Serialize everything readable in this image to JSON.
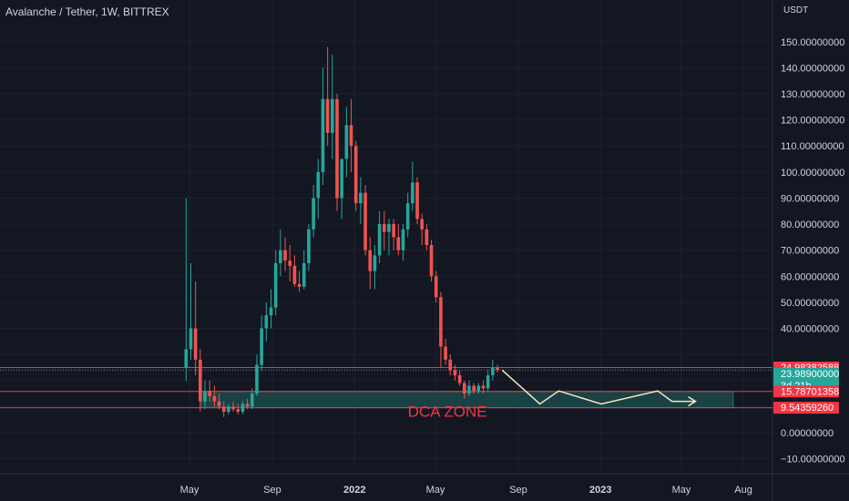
{
  "header": {
    "title": "Avalanche / Tether, 1W, BITTREX",
    "currency": "USDT"
  },
  "colors": {
    "background": "#131722",
    "up": "#26a69a",
    "down": "#ef5350",
    "hline": "#f23645",
    "zone_fill": "#1e5050",
    "projection": "#f3e9c0",
    "annotation": "#f23645",
    "text": "#d1d4dc",
    "grid": "#1c2030"
  },
  "chart_data": {
    "type": "candlestick",
    "y_ticks": [
      -10,
      0,
      10,
      20,
      30,
      40,
      50,
      60,
      70,
      80,
      90,
      100,
      110,
      120,
      130,
      140,
      150
    ],
    "y_tick_labels": [
      "−10.00000000",
      "0.00000000",
      "",
      "",
      "",
      "40.00000000",
      "50.00000000",
      "60.00000000",
      "70.00000000",
      "80.00000000",
      "90.00000000",
      "100.00000000",
      "110.00000000",
      "120.00000000",
      "130.00000000",
      "140.00000000",
      "150.00000000"
    ],
    "ylim": [
      -14,
      166
    ],
    "x_ticks": [
      {
        "label": "May",
        "date": "2021-05-01"
      },
      {
        "label": "Sep",
        "date": "2021-09-01"
      },
      {
        "label": "2022",
        "date": "2022-01-01"
      },
      {
        "label": "May",
        "date": "2022-05-01"
      },
      {
        "label": "Sep",
        "date": "2022-09-01"
      },
      {
        "label": "2023",
        "date": "2023-01-01"
      },
      {
        "label": "May",
        "date": "2023-05-01"
      },
      {
        "label": "Aug",
        "date": "2023-08-01"
      }
    ],
    "candles": [
      {
        "date": "2021-04-26",
        "o": 25,
        "h": 90,
        "l": 20,
        "c": 32
      },
      {
        "date": "2021-05-03",
        "o": 32,
        "h": 65,
        "l": 28,
        "c": 40
      },
      {
        "date": "2021-05-10",
        "o": 40,
        "h": 58,
        "l": 22,
        "c": 28
      },
      {
        "date": "2021-05-17",
        "o": 28,
        "h": 32,
        "l": 8,
        "c": 12
      },
      {
        "date": "2021-05-24",
        "o": 12,
        "h": 20,
        "l": 9,
        "c": 16
      },
      {
        "date": "2021-05-31",
        "o": 16,
        "h": 20,
        "l": 12,
        "c": 14
      },
      {
        "date": "2021-06-07",
        "o": 14,
        "h": 18,
        "l": 10,
        "c": 12
      },
      {
        "date": "2021-06-14",
        "o": 12,
        "h": 15,
        "l": 9,
        "c": 10
      },
      {
        "date": "2021-06-21",
        "o": 10,
        "h": 12,
        "l": 6,
        "c": 8
      },
      {
        "date": "2021-06-28",
        "o": 8,
        "h": 11,
        "l": 7,
        "c": 10
      },
      {
        "date": "2021-07-05",
        "o": 10,
        "h": 12,
        "l": 8,
        "c": 9
      },
      {
        "date": "2021-07-12",
        "o": 9,
        "h": 11,
        "l": 7,
        "c": 8
      },
      {
        "date": "2021-07-19",
        "o": 8,
        "h": 12,
        "l": 7,
        "c": 11
      },
      {
        "date": "2021-07-26",
        "o": 11,
        "h": 13,
        "l": 9,
        "c": 10
      },
      {
        "date": "2021-08-02",
        "o": 10,
        "h": 17,
        "l": 9,
        "c": 15
      },
      {
        "date": "2021-08-09",
        "o": 15,
        "h": 30,
        "l": 14,
        "c": 26
      },
      {
        "date": "2021-08-16",
        "o": 26,
        "h": 45,
        "l": 24,
        "c": 40
      },
      {
        "date": "2021-08-23",
        "o": 40,
        "h": 50,
        "l": 35,
        "c": 45
      },
      {
        "date": "2021-08-30",
        "o": 45,
        "h": 55,
        "l": 40,
        "c": 48
      },
      {
        "date": "2021-09-06",
        "o": 48,
        "h": 70,
        "l": 45,
        "c": 65
      },
      {
        "date": "2021-09-13",
        "o": 65,
        "h": 78,
        "l": 60,
        "c": 70
      },
      {
        "date": "2021-09-20",
        "o": 70,
        "h": 75,
        "l": 62,
        "c": 66
      },
      {
        "date": "2021-09-27",
        "o": 66,
        "h": 72,
        "l": 58,
        "c": 64
      },
      {
        "date": "2021-10-04",
        "o": 64,
        "h": 68,
        "l": 56,
        "c": 57
      },
      {
        "date": "2021-10-11",
        "o": 57,
        "h": 62,
        "l": 54,
        "c": 56
      },
      {
        "date": "2021-10-18",
        "o": 56,
        "h": 70,
        "l": 55,
        "c": 65
      },
      {
        "date": "2021-10-25",
        "o": 65,
        "h": 80,
        "l": 62,
        "c": 78
      },
      {
        "date": "2021-11-01",
        "o": 78,
        "h": 95,
        "l": 75,
        "c": 90
      },
      {
        "date": "2021-11-08",
        "o": 90,
        "h": 105,
        "l": 82,
        "c": 100
      },
      {
        "date": "2021-11-15",
        "o": 100,
        "h": 140,
        "l": 95,
        "c": 128
      },
      {
        "date": "2021-11-22",
        "o": 128,
        "h": 148,
        "l": 110,
        "c": 115
      },
      {
        "date": "2021-11-29",
        "o": 115,
        "h": 145,
        "l": 105,
        "c": 128
      },
      {
        "date": "2021-12-06",
        "o": 128,
        "h": 130,
        "l": 85,
        "c": 90
      },
      {
        "date": "2021-12-13",
        "o": 90,
        "h": 105,
        "l": 82,
        "c": 105
      },
      {
        "date": "2021-12-20",
        "o": 105,
        "h": 125,
        "l": 98,
        "c": 118
      },
      {
        "date": "2021-12-27",
        "o": 118,
        "h": 128,
        "l": 100,
        "c": 110
      },
      {
        "date": "2022-01-03",
        "o": 110,
        "h": 112,
        "l": 85,
        "c": 88
      },
      {
        "date": "2022-01-10",
        "o": 88,
        "h": 98,
        "l": 80,
        "c": 92
      },
      {
        "date": "2022-01-17",
        "o": 92,
        "h": 95,
        "l": 68,
        "c": 70
      },
      {
        "date": "2022-01-24",
        "o": 70,
        "h": 75,
        "l": 55,
        "c": 62
      },
      {
        "date": "2022-01-31",
        "o": 62,
        "h": 72,
        "l": 55,
        "c": 68
      },
      {
        "date": "2022-02-07",
        "o": 68,
        "h": 85,
        "l": 65,
        "c": 80
      },
      {
        "date": "2022-02-14",
        "o": 80,
        "h": 85,
        "l": 70,
        "c": 77
      },
      {
        "date": "2022-02-21",
        "o": 77,
        "h": 82,
        "l": 68,
        "c": 80
      },
      {
        "date": "2022-02-28",
        "o": 80,
        "h": 82,
        "l": 70,
        "c": 75
      },
      {
        "date": "2022-03-07",
        "o": 75,
        "h": 80,
        "l": 68,
        "c": 70
      },
      {
        "date": "2022-03-14",
        "o": 70,
        "h": 80,
        "l": 66,
        "c": 78
      },
      {
        "date": "2022-03-21",
        "o": 78,
        "h": 92,
        "l": 75,
        "c": 88
      },
      {
        "date": "2022-03-28",
        "o": 88,
        "h": 104,
        "l": 85,
        "c": 96
      },
      {
        "date": "2022-04-04",
        "o": 96,
        "h": 98,
        "l": 80,
        "c": 82
      },
      {
        "date": "2022-04-11",
        "o": 82,
        "h": 84,
        "l": 72,
        "c": 78
      },
      {
        "date": "2022-04-18",
        "o": 78,
        "h": 80,
        "l": 70,
        "c": 72
      },
      {
        "date": "2022-04-25",
        "o": 72,
        "h": 74,
        "l": 58,
        "c": 60
      },
      {
        "date": "2022-05-02",
        "o": 60,
        "h": 62,
        "l": 50,
        "c": 52
      },
      {
        "date": "2022-05-09",
        "o": 52,
        "h": 54,
        "l": 25,
        "c": 33
      },
      {
        "date": "2022-05-16",
        "o": 33,
        "h": 36,
        "l": 26,
        "c": 28
      },
      {
        "date": "2022-05-23",
        "o": 28,
        "h": 30,
        "l": 22,
        "c": 24
      },
      {
        "date": "2022-05-30",
        "o": 24,
        "h": 26,
        "l": 20,
        "c": 22
      },
      {
        "date": "2022-06-06",
        "o": 22,
        "h": 24,
        "l": 18,
        "c": 19
      },
      {
        "date": "2022-06-13",
        "o": 19,
        "h": 20,
        "l": 13,
        "c": 15
      },
      {
        "date": "2022-06-20",
        "o": 15,
        "h": 20,
        "l": 14,
        "c": 18
      },
      {
        "date": "2022-06-27",
        "o": 18,
        "h": 19,
        "l": 15,
        "c": 16
      },
      {
        "date": "2022-07-04",
        "o": 16,
        "h": 19,
        "l": 15,
        "c": 18
      },
      {
        "date": "2022-07-11",
        "o": 18,
        "h": 20,
        "l": 15,
        "c": 17
      },
      {
        "date": "2022-07-18",
        "o": 17,
        "h": 24,
        "l": 16,
        "c": 22
      },
      {
        "date": "2022-07-25",
        "o": 22,
        "h": 28,
        "l": 20,
        "c": 25
      },
      {
        "date": "2022-08-01",
        "o": 25,
        "h": 26,
        "l": 23,
        "c": 23.99
      }
    ],
    "hlines": [
      {
        "value": 24.98382588,
        "label": "24.98382588",
        "box": "#f23645"
      },
      {
        "value": 15.78701358,
        "label": "15.78701358",
        "box": "#f23645"
      },
      {
        "value": 9.5435926,
        "label": "9.54359260",
        "box": "#f23645"
      }
    ],
    "last_price": {
      "value": 23.989,
      "label": "23.98900000",
      "countdown": "3d 21h"
    },
    "zone": {
      "from_date": "2021-05-17",
      "to_date": "2023-07-17",
      "low": 9.5435926,
      "high": 15.78701358,
      "label": "DCA ZONE"
    },
    "projection": [
      {
        "date": "2022-08-08",
        "value": 24
      },
      {
        "date": "2022-10-03",
        "value": 11
      },
      {
        "date": "2022-10-31",
        "value": 16
      },
      {
        "date": "2023-01-02",
        "value": 11
      },
      {
        "date": "2023-03-27",
        "value": 16
      },
      {
        "date": "2023-04-17",
        "value": 12
      },
      {
        "date": "2023-05-22",
        "value": 12
      }
    ]
  }
}
